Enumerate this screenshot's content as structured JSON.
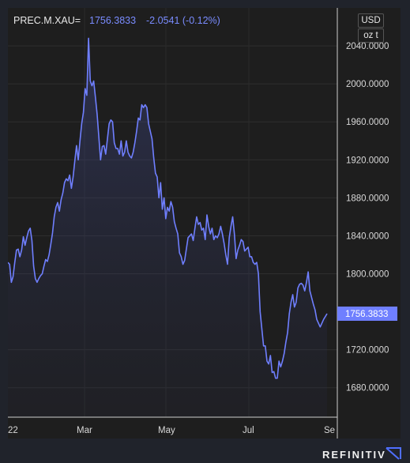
{
  "header": {
    "symbol": "PREC.M.XAU=",
    "price": "1756.3833",
    "change": "-2.0541 (-0.12%)"
  },
  "units": {
    "currency": "USD",
    "weight": "oz t"
  },
  "brand": {
    "name": "REFINITIV",
    "icon": "refinitiv-arrow-icon"
  },
  "colors": {
    "line": "#6f7fff",
    "last_price_tag": "#6f7fff",
    "background": "#1e1e1e",
    "page": "#20232b"
  },
  "chart_data": {
    "type": "area",
    "title": "",
    "xlabel": "",
    "ylabel": "",
    "ylim": [
      1649,
      2080
    ],
    "grid": true,
    "last_value": "1756.3833",
    "y_ticks": [
      "2040.0000",
      "2000.0000",
      "1960.0000",
      "1920.0000",
      "1880.0000",
      "1840.0000",
      "1800.0000",
      "1720.0000",
      "1680.0000"
    ],
    "x_ticks": [
      "22",
      "Mar",
      "May",
      "Jul",
      "Se"
    ],
    "series": [
      {
        "values": [
          1812,
          1810,
          1791,
          1797,
          1812,
          1825,
          1826,
          1818,
          1825,
          1839,
          1830,
          1838,
          1845,
          1848,
          1835,
          1808,
          1795,
          1791,
          1795,
          1798,
          1800,
          1808,
          1815,
          1813,
          1820,
          1831,
          1843,
          1860,
          1870,
          1875,
          1866,
          1878,
          1885,
          1896,
          1900,
          1898,
          1904,
          1890,
          1902,
          1919,
          1935,
          1920,
          1940,
          1958,
          1970,
          1995,
          1988,
          2048,
          2003,
          1998,
          2003,
          1986,
          1968,
          1944,
          1920,
          1934,
          1935,
          1926,
          1942,
          1958,
          1962,
          1960,
          1938,
          1932,
          1932,
          1926,
          1940,
          1924,
          1928,
          1940,
          1928,
          1924,
          1922,
          1928,
          1938,
          1950,
          1964,
          1962,
          1978,
          1975,
          1978,
          1975,
          1958,
          1950,
          1942,
          1922,
          1906,
          1902,
          1880,
          1896,
          1868,
          1880,
          1858,
          1870,
          1866,
          1876,
          1870,
          1855,
          1848,
          1842,
          1822,
          1818,
          1810,
          1814,
          1826,
          1838,
          1840,
          1842,
          1835,
          1848,
          1860,
          1852,
          1854,
          1846,
          1848,
          1836,
          1862,
          1850,
          1842,
          1848,
          1836,
          1840,
          1838,
          1842,
          1850,
          1842,
          1832,
          1820,
          1810,
          1838,
          1850,
          1860,
          1842,
          1816,
          1825,
          1830,
          1836,
          1834,
          1824,
          1826,
          1828,
          1818,
          1818,
          1812,
          1810,
          1812,
          1800,
          1760,
          1742,
          1724,
          1724,
          1708,
          1705,
          1714,
          1696,
          1697,
          1690,
          1690,
          1708,
          1702,
          1708,
          1716,
          1728,
          1738,
          1758,
          1770,
          1778,
          1765,
          1770,
          1785,
          1789,
          1790,
          1788,
          1782,
          1791,
          1802,
          1782,
          1775,
          1768,
          1762,
          1752,
          1748,
          1744,
          1748,
          1752,
          1755,
          1758
        ]
      }
    ]
  }
}
